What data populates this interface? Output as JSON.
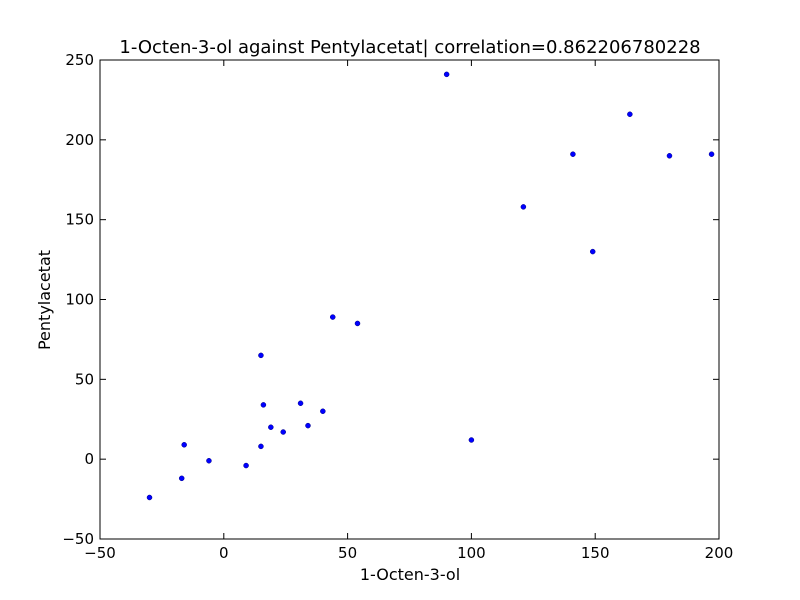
{
  "chart_data": {
    "type": "scatter",
    "title": "1-Octen-3-ol against Pentylacetat| correlation=0.862206780228",
    "xlabel": "1-Octen-3-ol",
    "ylabel": "Pentylacetat",
    "xlim": [
      -50,
      200
    ],
    "ylim": [
      -50,
      250
    ],
    "xticks": [
      -50,
      0,
      50,
      100,
      150,
      200
    ],
    "yticks": [
      -50,
      0,
      50,
      100,
      150,
      200,
      250
    ],
    "xtick_labels": [
      "−50",
      "0",
      "50",
      "100",
      "150",
      "200"
    ],
    "ytick_labels": [
      "−50",
      "0",
      "50",
      "100",
      "150",
      "200",
      "250"
    ],
    "grid": false,
    "marker_color": "#0000ff",
    "points": [
      {
        "x": -30,
        "y": -24
      },
      {
        "x": -17,
        "y": -12
      },
      {
        "x": -16,
        "y": 9
      },
      {
        "x": -6,
        "y": -1
      },
      {
        "x": 9,
        "y": -4
      },
      {
        "x": 15,
        "y": 8
      },
      {
        "x": 15,
        "y": 65
      },
      {
        "x": 16,
        "y": 34
      },
      {
        "x": 19,
        "y": 20
      },
      {
        "x": 24,
        "y": 17
      },
      {
        "x": 31,
        "y": 35
      },
      {
        "x": 34,
        "y": 21
      },
      {
        "x": 40,
        "y": 30
      },
      {
        "x": 44,
        "y": 89
      },
      {
        "x": 54,
        "y": 85
      },
      {
        "x": 90,
        "y": 241
      },
      {
        "x": 100,
        "y": 12
      },
      {
        "x": 121,
        "y": 158
      },
      {
        "x": 141,
        "y": 191
      },
      {
        "x": 149,
        "y": 130
      },
      {
        "x": 164,
        "y": 216
      },
      {
        "x": 180,
        "y": 190
      },
      {
        "x": 197,
        "y": 191
      }
    ]
  }
}
